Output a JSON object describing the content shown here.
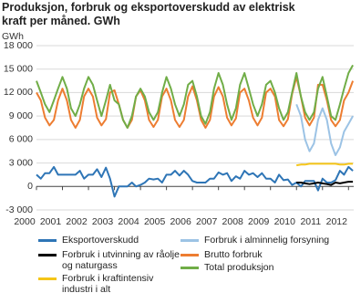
{
  "chart_data": {
    "type": "line",
    "title": "Produksjon, forbruk og eksportoverskudd av elektrisk kraft per måned. GWh",
    "y_label": "GWh",
    "x": [
      2000,
      2000.17,
      2000.33,
      2000.5,
      2000.67,
      2000.83,
      2001,
      2001.17,
      2001.33,
      2001.5,
      2001.67,
      2001.83,
      2002,
      2002.17,
      2002.33,
      2002.5,
      2002.67,
      2002.83,
      2003,
      2003.17,
      2003.33,
      2003.5,
      2003.67,
      2003.83,
      2004,
      2004.17,
      2004.33,
      2004.5,
      2004.67,
      2004.83,
      2005,
      2005.17,
      2005.33,
      2005.5,
      2005.67,
      2005.83,
      2006,
      2006.17,
      2006.33,
      2006.5,
      2006.67,
      2006.83,
      2007,
      2007.17,
      2007.33,
      2007.5,
      2007.67,
      2007.83,
      2008,
      2008.17,
      2008.33,
      2008.5,
      2008.67,
      2008.83,
      2009,
      2009.17,
      2009.33,
      2009.5,
      2009.67,
      2009.83,
      2010,
      2010.17,
      2010.33,
      2010.5,
      2010.67,
      2010.83,
      2011,
      2011.17,
      2011.33,
      2011.5,
      2011.67,
      2011.83,
      2012,
      2012.17
    ],
    "xlim": [
      2000,
      2012.2
    ],
    "xticks": [
      2000,
      2001,
      2002,
      2003,
      2004,
      2005,
      2006,
      2007,
      2008,
      2009,
      2010,
      2011,
      2012
    ],
    "ylim": [
      -3000,
      18000
    ],
    "yticks": [
      {
        "value": -3000,
        "label": "-3 000"
      },
      0,
      {
        "value": 3000,
        "label": "3 000"
      },
      {
        "value": 6000,
        "label": "6 000"
      },
      {
        "value": 9000,
        "label": "9 000"
      },
      {
        "value": 12000,
        "label": "12 000"
      },
      {
        "value": 15000,
        "label": "15 000"
      },
      {
        "value": 18000,
        "label": "18 000"
      }
    ],
    "grid": true,
    "series": [
      {
        "name": "Eksportoverskudd",
        "color": "#2e75b6",
        "values": [
          1500,
          1000,
          1700,
          1700,
          2500,
          1500,
          1500,
          1500,
          1500,
          1500,
          2000,
          1000,
          1500,
          1500,
          2200,
          1200,
          2400,
          1000,
          -1300,
          0,
          0,
          0,
          500,
          0,
          200,
          500,
          1000,
          900,
          1000,
          500,
          1500,
          1500,
          2000,
          1400,
          2000,
          1500,
          700,
          500,
          500,
          500,
          1000,
          1000,
          1800,
          1500,
          1700,
          700,
          1300,
          1000,
          2000,
          1500,
          1700,
          1200,
          1700,
          1000,
          1000,
          500,
          1500,
          800,
          900,
          200,
          500,
          0,
          700,
          700,
          700,
          -500,
          1000,
          500,
          500,
          800,
          2000,
          1500,
          2500,
          2000
        ]
      },
      {
        "name": "Forbruk i utvinning av råolje og naturgass",
        "color": "#000000",
        "values": [
          null,
          null,
          null,
          null,
          null,
          null,
          null,
          null,
          null,
          null,
          null,
          null,
          null,
          null,
          null,
          null,
          null,
          null,
          null,
          null,
          null,
          null,
          null,
          null,
          null,
          null,
          null,
          null,
          null,
          null,
          null,
          null,
          null,
          null,
          null,
          null,
          null,
          null,
          null,
          null,
          null,
          null,
          null,
          null,
          null,
          null,
          null,
          null,
          null,
          null,
          null,
          null,
          null,
          null,
          null,
          null,
          null,
          null,
          null,
          null,
          500,
          500,
          400,
          300,
          400,
          500,
          400,
          300,
          200,
          500,
          400,
          500,
          600,
          600
        ]
      },
      {
        "name": "Forbruk i kraftintensiv industri i alt",
        "color": "#f5c518",
        "values": [
          null,
          null,
          null,
          null,
          null,
          null,
          null,
          null,
          null,
          null,
          null,
          null,
          null,
          null,
          null,
          null,
          null,
          null,
          null,
          null,
          null,
          null,
          null,
          null,
          null,
          null,
          null,
          null,
          null,
          null,
          null,
          null,
          null,
          null,
          null,
          null,
          null,
          null,
          null,
          null,
          null,
          null,
          null,
          null,
          null,
          null,
          null,
          null,
          null,
          null,
          null,
          null,
          null,
          null,
          null,
          null,
          null,
          null,
          null,
          null,
          2700,
          2800,
          2800,
          2900,
          2900,
          2900,
          2900,
          2900,
          2900,
          2900,
          2800,
          2800,
          2900,
          2900
        ]
      },
      {
        "name": "Forbruk i alminnelig forsyning",
        "color": "#9cc3e5",
        "values": [
          null,
          null,
          null,
          null,
          null,
          null,
          null,
          null,
          null,
          null,
          null,
          null,
          null,
          null,
          null,
          null,
          null,
          null,
          null,
          null,
          null,
          null,
          null,
          null,
          null,
          null,
          null,
          null,
          null,
          null,
          null,
          null,
          null,
          null,
          null,
          null,
          null,
          null,
          null,
          null,
          null,
          null,
          null,
          null,
          null,
          null,
          null,
          null,
          null,
          null,
          null,
          null,
          null,
          null,
          null,
          null,
          null,
          null,
          null,
          null,
          10500,
          9000,
          6000,
          4500,
          5500,
          8500,
          10000,
          8500,
          5500,
          4000,
          5000,
          7000,
          8000,
          9000
        ]
      },
      {
        "name": "Brutto forbruk",
        "color": "#ed7d31",
        "values": [
          12000,
          11000,
          8800,
          7800,
          8500,
          11000,
          12500,
          11000,
          8500,
          7500,
          8500,
          11500,
          12500,
          11500,
          8800,
          7800,
          8600,
          12000,
          12300,
          10500,
          8500,
          7500,
          8500,
          11500,
          12300,
          11000,
          8500,
          7600,
          8500,
          11500,
          12500,
          11000,
          8500,
          7600,
          8500,
          11500,
          12800,
          11000,
          8500,
          7500,
          8500,
          11500,
          12700,
          11500,
          8800,
          7800,
          8700,
          12000,
          12500,
          11000,
          8800,
          7800,
          8800,
          12000,
          12500,
          11500,
          8500,
          7700,
          8600,
          11800,
          14000,
          11500,
          8800,
          7800,
          8800,
          13000,
          13000,
          11000,
          8500,
          7700,
          8500,
          11000,
          12000,
          13500
        ]
      },
      {
        "name": "Total produksjon",
        "color": "#70ad47",
        "values": [
          13500,
          12000,
          10500,
          9500,
          11000,
          12500,
          14000,
          12500,
          10000,
          9000,
          10500,
          12500,
          14000,
          13000,
          11000,
          9000,
          11000,
          13000,
          11000,
          10500,
          8500,
          7500,
          9000,
          11500,
          12500,
          11500,
          9500,
          8500,
          9500,
          12000,
          14000,
          12500,
          10500,
          9000,
          10500,
          13000,
          13500,
          11500,
          9000,
          8000,
          9500,
          12500,
          14500,
          13000,
          10500,
          8500,
          10000,
          13000,
          14500,
          12500,
          10500,
          9000,
          10500,
          13000,
          13500,
          12000,
          10000,
          8500,
          9500,
          12000,
          14500,
          11500,
          9500,
          8500,
          9500,
          12500,
          14000,
          11500,
          9000,
          8500,
          10500,
          12500,
          14500,
          15500
        ]
      }
    ]
  }
}
